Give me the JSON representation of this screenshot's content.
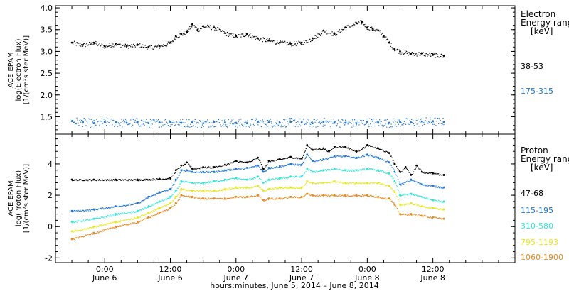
{
  "chart_data": [
    {
      "type": "scatter",
      "panel": "electron",
      "ylabel_lines": [
        "ACE EPAM",
        "log(Electron Flux)",
        "[1/(cm²s ster MeV)]"
      ],
      "ylim": [
        1.1,
        4.05
      ],
      "yticks": [
        1.5,
        2.0,
        2.5,
        3.0,
        3.5,
        4.0
      ],
      "ytick_labels": [
        "1.5",
        "2.0",
        "2.5",
        "3.0",
        "3.5",
        "4.0"
      ],
      "legend_title_lines": [
        "Electron",
        "Energy range",
        "[keV]"
      ],
      "series": [
        {
          "name": "38-53",
          "color": "#000000",
          "x_hours": [
            -6,
            -4,
            -2,
            0,
            2,
            4,
            6,
            8,
            10,
            12,
            13,
            14,
            15,
            16,
            17,
            18,
            20,
            22,
            24,
            26,
            28,
            30,
            32,
            34,
            36,
            38,
            40,
            42,
            44,
            46,
            47,
            48,
            49,
            50,
            51,
            52,
            53,
            54,
            56,
            58,
            60,
            62
          ],
          "y": [
            3.2,
            3.15,
            3.2,
            3.12,
            3.18,
            3.12,
            3.15,
            3.1,
            3.12,
            3.2,
            3.35,
            3.4,
            3.45,
            3.62,
            3.5,
            3.58,
            3.55,
            3.42,
            3.35,
            3.4,
            3.3,
            3.25,
            3.2,
            3.18,
            3.2,
            3.3,
            3.48,
            3.4,
            3.55,
            3.65,
            3.68,
            3.55,
            3.52,
            3.48,
            3.35,
            3.2,
            3.05,
            3.0,
            2.95,
            2.95,
            2.92,
            2.9
          ]
        },
        {
          "name": "175-315",
          "color": "#1f77d6",
          "x_hours": [
            -6,
            -4,
            -2,
            0,
            2,
            4,
            6,
            8,
            10,
            12,
            14,
            16,
            18,
            20,
            22,
            24,
            26,
            28,
            30,
            32,
            34,
            36,
            38,
            40,
            42,
            44,
            46,
            48,
            50,
            52,
            54,
            56,
            58,
            60,
            62
          ],
          "y": [
            1.4,
            1.38,
            1.35,
            1.38,
            1.37,
            1.36,
            1.38,
            1.35,
            1.37,
            1.38,
            1.36,
            1.37,
            1.35,
            1.38,
            1.37,
            1.36,
            1.35,
            1.38,
            1.37,
            1.36,
            1.38,
            1.37,
            1.35,
            1.38,
            1.37,
            1.36,
            1.35,
            1.38,
            1.37,
            1.36,
            1.38,
            1.37,
            1.39,
            1.4,
            1.38
          ]
        }
      ]
    },
    {
      "type": "scatter",
      "panel": "proton",
      "ylabel_lines": [
        "ACE EPAM",
        "log(Proton Flux)",
        "[1/(cm²s ster MeV)]"
      ],
      "ylim": [
        -2.3,
        5.9
      ],
      "yticks": [
        -2,
        0,
        2,
        4
      ],
      "ytick_labels": [
        "-2",
        "0",
        "2",
        "4"
      ],
      "legend_title_lines": [
        "Proton",
        "Energy range",
        "[keV]"
      ],
      "series": [
        {
          "name": "47-68",
          "color": "#000000",
          "x_hours": [
            -6,
            -2,
            2,
            6,
            10,
            12,
            13,
            14,
            15,
            16,
            18,
            20,
            22,
            24,
            26,
            28,
            29,
            30,
            32,
            34,
            36,
            37,
            38,
            40,
            41,
            42,
            44,
            46,
            48,
            50,
            52,
            53,
            54,
            55,
            56,
            57,
            58,
            60,
            62
          ],
          "y": [
            3.0,
            3.0,
            3.0,
            3.0,
            3.05,
            3.1,
            3.6,
            3.9,
            4.1,
            3.7,
            3.8,
            3.8,
            3.95,
            4.2,
            4.1,
            4.4,
            3.7,
            4.2,
            4.3,
            4.45,
            4.35,
            5.2,
            4.9,
            5.0,
            4.8,
            5.1,
            5.1,
            4.8,
            5.2,
            5.0,
            4.7,
            4.0,
            3.5,
            3.8,
            3.3,
            3.9,
            3.5,
            3.4,
            3.3
          ]
        },
        {
          "name": "115-195",
          "color": "#1f77d6",
          "x_hours": [
            -6,
            -2,
            2,
            6,
            8,
            10,
            12,
            13,
            14,
            15,
            16,
            18,
            20,
            22,
            24,
            26,
            28,
            29,
            30,
            32,
            34,
            36,
            37,
            38,
            40,
            42,
            44,
            46,
            48,
            50,
            52,
            53,
            54,
            56,
            58,
            60,
            62
          ],
          "y": [
            1.0,
            1.1,
            1.3,
            1.5,
            1.9,
            2.2,
            2.4,
            3.0,
            3.6,
            3.6,
            3.5,
            3.5,
            3.5,
            3.6,
            3.7,
            3.75,
            3.9,
            3.5,
            3.75,
            3.85,
            4.0,
            3.95,
            4.6,
            4.2,
            4.3,
            4.5,
            4.5,
            4.4,
            4.6,
            4.4,
            4.1,
            3.5,
            2.7,
            3.0,
            2.7,
            2.6,
            2.5
          ]
        },
        {
          "name": "310-580",
          "color": "#2ee6d6",
          "x_hours": [
            -6,
            -2,
            2,
            6,
            8,
            10,
            12,
            13,
            14,
            16,
            18,
            20,
            22,
            24,
            26,
            28,
            29,
            30,
            32,
            34,
            36,
            37,
            38,
            40,
            42,
            44,
            46,
            48,
            50,
            52,
            53,
            54,
            56,
            58,
            60,
            62
          ],
          "y": [
            0.3,
            0.5,
            0.8,
            1.0,
            1.3,
            1.6,
            1.9,
            2.3,
            2.9,
            2.8,
            2.8,
            2.9,
            3.0,
            3.1,
            3.0,
            3.2,
            2.8,
            3.0,
            3.1,
            3.2,
            3.2,
            3.7,
            3.5,
            3.6,
            3.7,
            3.6,
            3.6,
            3.7,
            3.6,
            3.4,
            2.9,
            2.0,
            2.1,
            1.9,
            1.7,
            1.6
          ]
        },
        {
          "name": "795-1193",
          "color": "#e6e61e",
          "x_hours": [
            -6,
            -2,
            2,
            6,
            8,
            10,
            12,
            13,
            14,
            16,
            18,
            20,
            22,
            24,
            26,
            28,
            29,
            30,
            32,
            34,
            36,
            37,
            38,
            40,
            42,
            44,
            46,
            48,
            50,
            52,
            53,
            54,
            56,
            58,
            60,
            62
          ],
          "y": [
            -0.3,
            0.0,
            0.3,
            0.6,
            0.9,
            1.2,
            1.5,
            1.9,
            2.4,
            2.3,
            2.3,
            2.3,
            2.4,
            2.5,
            2.5,
            2.6,
            2.3,
            2.4,
            2.5,
            2.5,
            2.5,
            2.9,
            2.8,
            2.8,
            2.9,
            2.8,
            2.8,
            2.8,
            2.8,
            2.6,
            2.2,
            1.4,
            1.5,
            1.3,
            1.2,
            1.1
          ]
        },
        {
          "name": "1060-1900",
          "color": "#e8881e",
          "x_hours": [
            -6,
            -2,
            2,
            6,
            8,
            10,
            12,
            13,
            14,
            16,
            18,
            20,
            22,
            24,
            26,
            28,
            29,
            30,
            32,
            34,
            36,
            37,
            38,
            40,
            42,
            44,
            46,
            48,
            50,
            52,
            53,
            54,
            56,
            58,
            60,
            62
          ],
          "y": [
            -0.8,
            -0.4,
            0.0,
            0.3,
            0.6,
            0.9,
            1.2,
            1.5,
            2.0,
            1.9,
            1.8,
            1.8,
            1.8,
            1.9,
            1.9,
            2.0,
            1.7,
            1.8,
            1.8,
            1.9,
            1.9,
            2.1,
            2.0,
            2.0,
            2.0,
            2.0,
            2.0,
            2.0,
            1.9,
            1.8,
            1.4,
            0.8,
            0.8,
            0.7,
            0.6,
            0.5
          ]
        }
      ]
    }
  ],
  "x_axis": {
    "range_hours": [
      -9,
      75
    ],
    "ticks_hours": [
      0,
      12,
      24,
      36,
      48,
      60
    ],
    "tick_time_labels": [
      "0:00",
      "12:00",
      "0:00",
      "12:00",
      "0:00",
      "12:00"
    ],
    "tick_date_labels": [
      "June 6",
      "June 6",
      "June 7",
      "June 7",
      "June 8",
      "June 8"
    ],
    "minor_step_hours": 3,
    "xlabel": "hours:minutes, June  5, 2014 – June  8, 2014"
  }
}
